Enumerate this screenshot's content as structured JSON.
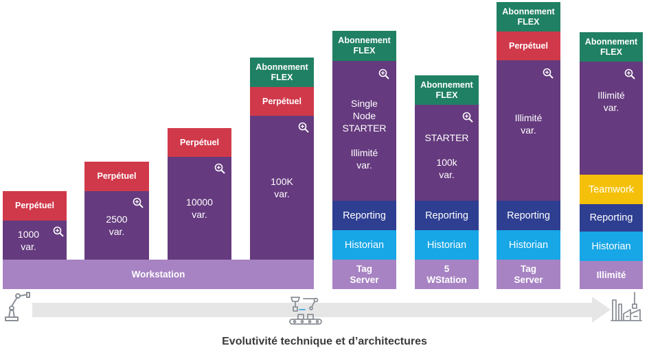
{
  "labels": {
    "perpetuel": "Perpétuel",
    "abonnement": "Abonnement\nFLEX",
    "reporting": "Reporting",
    "historian": "Historian",
    "teamwork": "Teamwork"
  },
  "columns": [
    {
      "id": "c1",
      "body": "1000\nvar."
    },
    {
      "id": "c2",
      "body": "2500\nvar."
    },
    {
      "id": "c3",
      "body": "10000\nvar."
    },
    {
      "id": "c4",
      "body": "100K\nvar."
    },
    {
      "id": "c5",
      "body": "Single\nNode\nSTARTER\n\nIllimité\nvar.",
      "footer": "Tag\nServer"
    },
    {
      "id": "c6",
      "body": "STARTER\n\n100k\nvar.",
      "footer": "5\nWStation"
    },
    {
      "id": "c7",
      "body": "Illimité\nvar.",
      "footer": "Tag\nServer"
    },
    {
      "id": "c8",
      "body": "Illimité\nvar.",
      "footer": "Illimité"
    }
  ],
  "workstation": "Workstation",
  "caption": "Evolutivité technique et d’architectures",
  "icons": [
    "zoom-icon",
    "robot-arm-icon",
    "production-line-icon",
    "factory-icon",
    "arrow-icon"
  ],
  "colors": {
    "purple": "#653a7e",
    "red": "#d0394a",
    "green": "#208063",
    "navy": "#2e3e91",
    "blue": "#17a6e6",
    "lilac": "#a783c3",
    "yellow": "#f5c00a",
    "arrow": "#e6e6e6"
  }
}
